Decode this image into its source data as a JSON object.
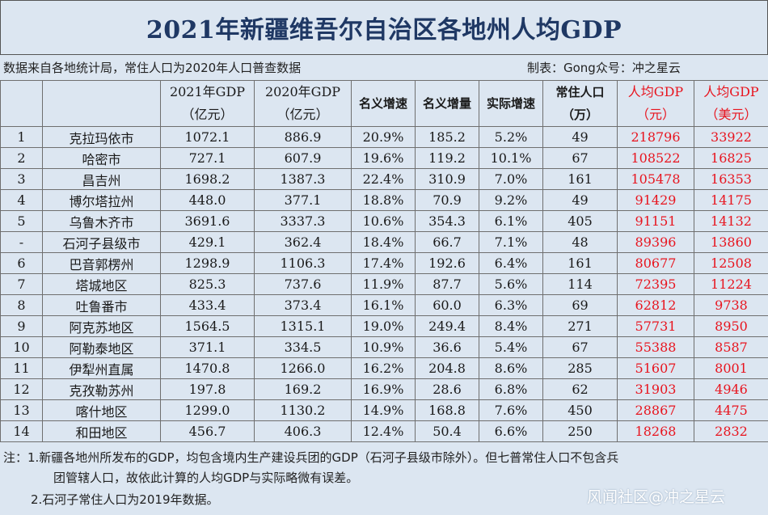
{
  "title": "2021年新疆维吾尔自治区各地州人均GDP",
  "source_note": "数据来自各地统计局，常住人口为2020年人口普查数据",
  "maker_note": "制表：Gong众号：冲之星云",
  "headers": {
    "rank": "",
    "region": "",
    "gdp2021_l1": "2021年GDP",
    "gdp2021_l2": "（亿元）",
    "gdp2020_l1": "2020年GDP",
    "gdp2020_l2": "（亿元）",
    "nominal_growth": "名义增速",
    "nominal_increase": "名义增量",
    "real_growth": "实际增速",
    "pop_l1": "常住人口",
    "pop_l2": "（万）",
    "percap_cny_l1": "人均GDP",
    "percap_cny_l2": "（元）",
    "percap_usd_l1": "人均GDP",
    "percap_usd_l2": "（美元）"
  },
  "rows": [
    {
      "rank": "1",
      "region": "克拉玛依市",
      "gdp2021": "1072.1",
      "gdp2020": "886.9",
      "nominal_growth": "20.9%",
      "nominal_increase": "185.2",
      "real_growth": "5.2%",
      "population": "49",
      "percap_cny": "218796",
      "percap_usd": "33922"
    },
    {
      "rank": "2",
      "region": "哈密市",
      "gdp2021": "727.1",
      "gdp2020": "607.9",
      "nominal_growth": "19.6%",
      "nominal_increase": "119.2",
      "real_growth": "10.1%",
      "population": "67",
      "percap_cny": "108522",
      "percap_usd": "16825"
    },
    {
      "rank": "3",
      "region": "昌吉州",
      "gdp2021": "1698.2",
      "gdp2020": "1387.3",
      "nominal_growth": "22.4%",
      "nominal_increase": "310.9",
      "real_growth": "7.0%",
      "population": "161",
      "percap_cny": "105478",
      "percap_usd": "16353"
    },
    {
      "rank": "4",
      "region": "博尔塔拉州",
      "gdp2021": "448.0",
      "gdp2020": "377.1",
      "nominal_growth": "18.8%",
      "nominal_increase": "70.9",
      "real_growth": "9.2%",
      "population": "49",
      "percap_cny": "91429",
      "percap_usd": "14175"
    },
    {
      "rank": "5",
      "region": "乌鲁木齐市",
      "gdp2021": "3691.6",
      "gdp2020": "3337.3",
      "nominal_growth": "10.6%",
      "nominal_increase": "354.3",
      "real_growth": "6.1%",
      "population": "405",
      "percap_cny": "91151",
      "percap_usd": "14132"
    },
    {
      "rank": "-",
      "region": "石河子县级市",
      "gdp2021": "429.1",
      "gdp2020": "362.4",
      "nominal_growth": "18.4%",
      "nominal_increase": "66.7",
      "real_growth": "7.1%",
      "population": "48",
      "percap_cny": "89396",
      "percap_usd": "13860"
    },
    {
      "rank": "6",
      "region": "巴音郭楞州",
      "gdp2021": "1298.9",
      "gdp2020": "1106.3",
      "nominal_growth": "17.4%",
      "nominal_increase": "192.6",
      "real_growth": "6.4%",
      "population": "161",
      "percap_cny": "80677",
      "percap_usd": "12508"
    },
    {
      "rank": "7",
      "region": "塔城地区",
      "gdp2021": "825.3",
      "gdp2020": "737.6",
      "nominal_growth": "11.9%",
      "nominal_increase": "87.7",
      "real_growth": "5.6%",
      "population": "114",
      "percap_cny": "72395",
      "percap_usd": "11224"
    },
    {
      "rank": "8",
      "region": "吐鲁番市",
      "gdp2021": "433.4",
      "gdp2020": "373.4",
      "nominal_growth": "16.1%",
      "nominal_increase": "60.0",
      "real_growth": "6.3%",
      "population": "69",
      "percap_cny": "62812",
      "percap_usd": "9738"
    },
    {
      "rank": "9",
      "region": "阿克苏地区",
      "gdp2021": "1564.5",
      "gdp2020": "1315.1",
      "nominal_growth": "19.0%",
      "nominal_increase": "249.4",
      "real_growth": "8.4%",
      "population": "271",
      "percap_cny": "57731",
      "percap_usd": "8950"
    },
    {
      "rank": "10",
      "region": "阿勒泰地区",
      "gdp2021": "371.1",
      "gdp2020": "334.5",
      "nominal_growth": "10.9%",
      "nominal_increase": "36.6",
      "real_growth": "5.4%",
      "population": "67",
      "percap_cny": "55388",
      "percap_usd": "8587"
    },
    {
      "rank": "11",
      "region": "伊犁州直属",
      "gdp2021": "1470.8",
      "gdp2020": "1266.0",
      "nominal_growth": "16.2%",
      "nominal_increase": "204.8",
      "real_growth": "8.6%",
      "population": "285",
      "percap_cny": "51607",
      "percap_usd": "8001"
    },
    {
      "rank": "12",
      "region": "克孜勒苏州",
      "gdp2021": "197.8",
      "gdp2020": "169.2",
      "nominal_growth": "16.9%",
      "nominal_increase": "28.6",
      "real_growth": "6.8%",
      "population": "62",
      "percap_cny": "31903",
      "percap_usd": "4946"
    },
    {
      "rank": "13",
      "region": "喀什地区",
      "gdp2021": "1299.0",
      "gdp2020": "1130.2",
      "nominal_growth": "14.9%",
      "nominal_increase": "168.8",
      "real_growth": "7.6%",
      "population": "450",
      "percap_cny": "28867",
      "percap_usd": "4475"
    },
    {
      "rank": "14",
      "region": "和田地区",
      "gdp2021": "456.7",
      "gdp2020": "406.3",
      "nominal_growth": "12.4%",
      "nominal_increase": "50.4",
      "real_growth": "6.6%",
      "population": "250",
      "percap_cny": "18268",
      "percap_usd": "2832"
    }
  ],
  "notes": {
    "line1": "注：1.新疆各地州所发布的GDP，均包含境内生产建设兵团的GDP（石河子县级市除外）。但七普常住人口不包含兵",
    "line1_cont": "团管辖人口，故依此计算的人均GDP与实际略微有误差。",
    "line2": "2.石河子常住人口为2019年数据。"
  },
  "watermark": "风闻社区@冲之星云",
  "colors": {
    "background": "#dce6f1",
    "title_text": "#1f3864",
    "highlight_red": "#e8141e",
    "grid": "#6f6f6f"
  }
}
